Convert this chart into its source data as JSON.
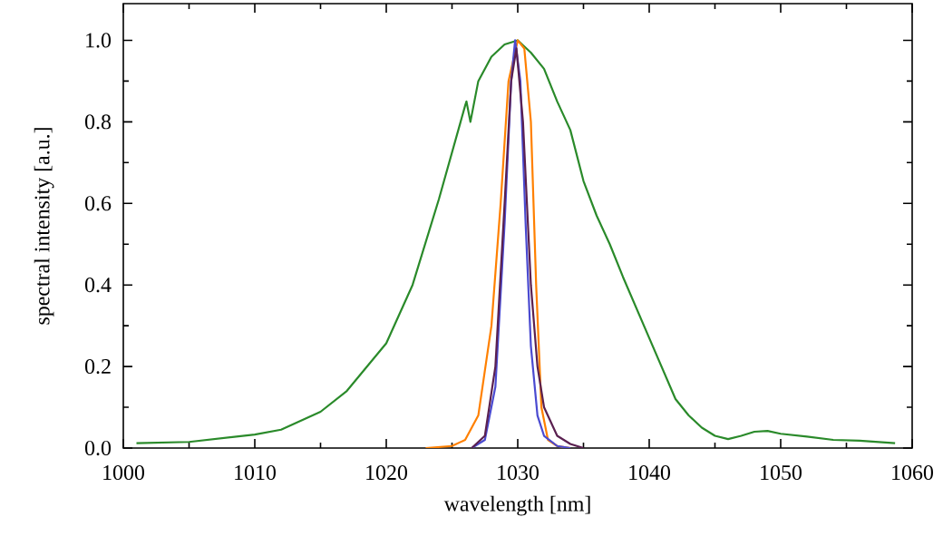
{
  "chart_data": {
    "type": "line",
    "xlabel": "wavelength [nm]",
    "ylabel": "spectral intensity [a.u.]",
    "xlim": [
      1000,
      1060
    ],
    "ylim": [
      0,
      1.09
    ],
    "xticks": [
      1000,
      1010,
      1020,
      1030,
      1040,
      1050,
      1060
    ],
    "yticks": [
      {
        "value": 0,
        "label": "0.0"
      },
      {
        "value": 0.2,
        "label": "0.2"
      },
      {
        "value": 0.4,
        "label": "0.4"
      },
      {
        "value": 0.6,
        "label": "0.6"
      },
      {
        "value": 0.8,
        "label": "0.8"
      },
      {
        "value": 1.0,
        "label": "1.0"
      }
    ],
    "grid": false,
    "marker": "none",
    "line_style": "solid",
    "series": [
      {
        "color": "#2a8a2a",
        "x": [
          1001,
          1005,
          1010,
          1012,
          1015,
          1017,
          1020,
          1022,
          1024,
          1026,
          1026.1,
          1026.4,
          1027,
          1028,
          1029,
          1030,
          1031,
          1032,
          1033,
          1034,
          1035,
          1036,
          1037,
          1038,
          1040,
          1042,
          1043,
          1044,
          1045,
          1046,
          1047,
          1048,
          1049,
          1050,
          1052,
          1054,
          1056,
          1058.7
        ],
        "values": [
          0.012,
          0.015,
          0.033,
          0.045,
          0.089,
          0.14,
          0.257,
          0.4,
          0.61,
          0.84,
          0.85,
          0.8,
          0.9,
          0.96,
          0.99,
          1.0,
          0.97,
          0.93,
          0.85,
          0.78,
          0.655,
          0.57,
          0.5,
          0.42,
          0.27,
          0.12,
          0.08,
          0.05,
          0.03,
          0.022,
          0.03,
          0.04,
          0.042,
          0.035,
          0.028,
          0.02,
          0.018,
          0.012
        ]
      },
      {
        "color": "#ff8000",
        "x": [
          1023,
          1025,
          1026,
          1027,
          1028,
          1028.7,
          1029.3,
          1030,
          1030.5,
          1031,
          1031.4,
          1031.8,
          1032.3,
          1033,
          1034
        ],
        "values": [
          0,
          0.005,
          0.02,
          0.08,
          0.3,
          0.6,
          0.9,
          1.0,
          0.98,
          0.8,
          0.4,
          0.1,
          0.02,
          0.005,
          0
        ]
      },
      {
        "color": "#4a4ad0",
        "x": [
          1026.5,
          1027.5,
          1028.3,
          1029,
          1029.5,
          1029.8,
          1030.2,
          1030.6,
          1031,
          1031.5,
          1032,
          1033,
          1034
        ],
        "values": [
          0,
          0.02,
          0.15,
          0.55,
          0.9,
          1.0,
          0.9,
          0.55,
          0.25,
          0.08,
          0.03,
          0.005,
          0
        ]
      },
      {
        "color": "#5a2050",
        "x": [
          1026.5,
          1027.5,
          1028.3,
          1029,
          1029.5,
          1029.9,
          1030.4,
          1031,
          1031.5,
          1032,
          1033,
          1034,
          1035
        ],
        "values": [
          0,
          0.03,
          0.2,
          0.6,
          0.9,
          0.98,
          0.8,
          0.4,
          0.2,
          0.1,
          0.03,
          0.01,
          0
        ]
      }
    ]
  }
}
